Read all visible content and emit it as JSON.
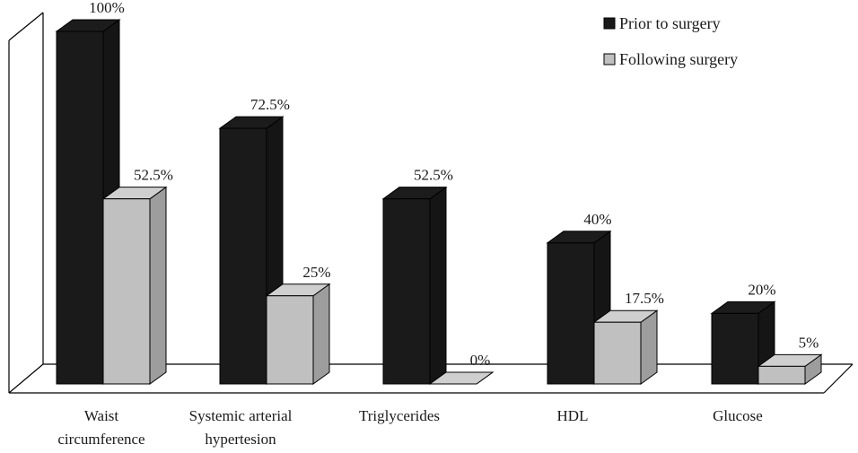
{
  "chart_data": {
    "type": "bar",
    "style": "3d-clustered-column",
    "title": "",
    "xlabel": "",
    "ylabel": "",
    "ylim": [
      0,
      100
    ],
    "grid": false,
    "legend_position": "top-right",
    "categories": [
      [
        "Waist",
        "circumference"
      ],
      [
        "Systemic arterial",
        "hypertesion"
      ],
      [
        "Triglycerides"
      ],
      [
        "HDL"
      ],
      [
        "Glucose"
      ]
    ],
    "series": [
      {
        "name": "Prior to surgery",
        "color": "#1a1a1a",
        "values": [
          100,
          72.5,
          52.5,
          40,
          20
        ],
        "labels": [
          "100%",
          "72.5%",
          "52.5%",
          "40%",
          "20%"
        ]
      },
      {
        "name": "Following surgery",
        "color": "#c0c0c0",
        "values": [
          52.5,
          25,
          0,
          17.5,
          5
        ],
        "labels": [
          "52.5%",
          "25%",
          "0%",
          "17.5%",
          "5%"
        ]
      }
    ]
  }
}
